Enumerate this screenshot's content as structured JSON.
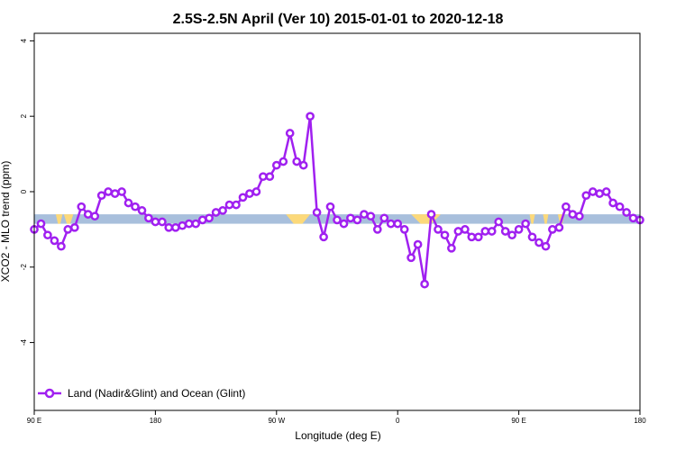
{
  "chart_data": {
    "type": "line",
    "title": "2.5S-2.5N April (Ver 10)   2015-01-01 to 2020-12-18",
    "xlabel": "Longitude (deg E)",
    "ylabel": "XCO2 - MLO trend (ppm)",
    "xlim": [
      90,
      540
    ],
    "ylim": [
      -5.8,
      4.2
    ],
    "x_ticks": [
      {
        "value": 90,
        "label": "90 E"
      },
      {
        "value": 180,
        "label": "180"
      },
      {
        "value": 270,
        "label": "90 W"
      },
      {
        "value": 360,
        "label": "0"
      },
      {
        "value": 450,
        "label": "90 E"
      },
      {
        "value": 540,
        "label": "180"
      }
    ],
    "y_ticks": [
      {
        "value": 4,
        "label": "4"
      },
      {
        "value": 2,
        "label": "2"
      },
      {
        "value": 0,
        "label": "0"
      },
      {
        "value": -2,
        "label": "-2"
      },
      {
        "value": -4,
        "label": "-4"
      }
    ],
    "legend": {
      "position": "bottom-left"
    },
    "land_sea_band": {
      "y_range": [
        -0.85,
        -0.6
      ],
      "ocean_color": "#a8bfdc",
      "land_color": "#fcd97a",
      "land_segments": [
        [
          106,
          111
        ],
        [
          112,
          119
        ],
        [
          277,
          295
        ],
        [
          370,
          392
        ],
        [
          458,
          462
        ],
        [
          468,
          472
        ],
        [
          479,
          484
        ]
      ]
    },
    "series": [
      {
        "name": "Land (Nadir&Glint) and Ocean (Glint)",
        "color": "#a020f0",
        "x": [
          90,
          95,
          100,
          105,
          110,
          115,
          120,
          125,
          130,
          135,
          140,
          145,
          150,
          155,
          160,
          165,
          170,
          175,
          180,
          185,
          190,
          195,
          200,
          205,
          210,
          215,
          220,
          225,
          230,
          235,
          240,
          245,
          250,
          255,
          260,
          265,
          270,
          275,
          280,
          285,
          290,
          295,
          300,
          305,
          310,
          315,
          320,
          325,
          330,
          335,
          340,
          345,
          350,
          355,
          360,
          365,
          370,
          375,
          380,
          385,
          390,
          395,
          400,
          405,
          410,
          415,
          420,
          425,
          430,
          435,
          440,
          445,
          450,
          455,
          460,
          465,
          470,
          475,
          480,
          485,
          490,
          495,
          500,
          505,
          510,
          515,
          520,
          525,
          530,
          535,
          540
        ],
        "y": [
          -1.0,
          -0.85,
          -1.15,
          -1.3,
          -1.45,
          -1.0,
          -0.95,
          -0.4,
          -0.6,
          -0.65,
          -0.1,
          0.0,
          -0.05,
          0.0,
          -0.3,
          -0.4,
          -0.5,
          -0.7,
          -0.8,
          -0.8,
          -0.95,
          -0.95,
          -0.9,
          -0.85,
          -0.85,
          -0.75,
          -0.7,
          -0.55,
          -0.5,
          -0.35,
          -0.35,
          -0.15,
          -0.05,
          0.0,
          0.4,
          0.4,
          0.7,
          0.8,
          1.55,
          0.8,
          0.7,
          2.0,
          -0.55,
          -1.2,
          -0.4,
          -0.75,
          -0.85,
          -0.7,
          -0.75,
          -0.6,
          -0.65,
          -1.0,
          -0.7,
          -0.85,
          -0.85,
          -1.0,
          -1.75,
          -1.4,
          -2.45,
          -0.6,
          -1.0,
          -1.15,
          -1.5,
          -1.05,
          -1.0,
          -1.2,
          -1.2,
          -1.05,
          -1.05,
          -0.8,
          -1.05,
          -1.15,
          -1.0,
          -0.85,
          -1.2,
          -1.35,
          -1.45,
          -1.0,
          -0.95,
          -0.4,
          -0.6,
          -0.65,
          -0.1,
          0.0,
          -0.05,
          0.0,
          -0.3,
          -0.4,
          -0.55,
          -0.7,
          -0.75
        ]
      }
    ]
  }
}
